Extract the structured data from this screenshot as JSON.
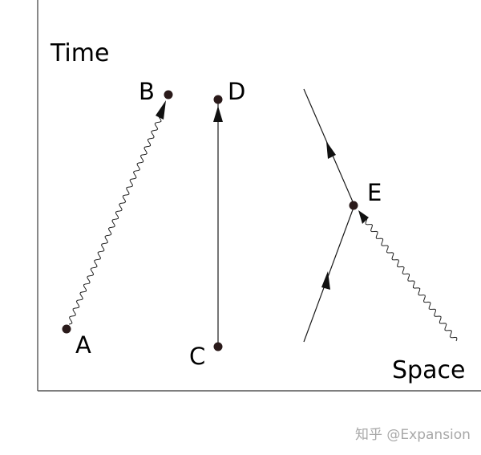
{
  "axes": {
    "time_label": "Time",
    "space_label": "Space"
  },
  "events": {
    "A": "A",
    "B": "B",
    "C": "C",
    "D": "D",
    "E": "E"
  },
  "watermark": "知乎 @Expansion",
  "colors": {
    "ink": "#111111",
    "axis": "#555555",
    "dot": "#2a1a1a",
    "watermark": "#a8a8a8"
  }
}
